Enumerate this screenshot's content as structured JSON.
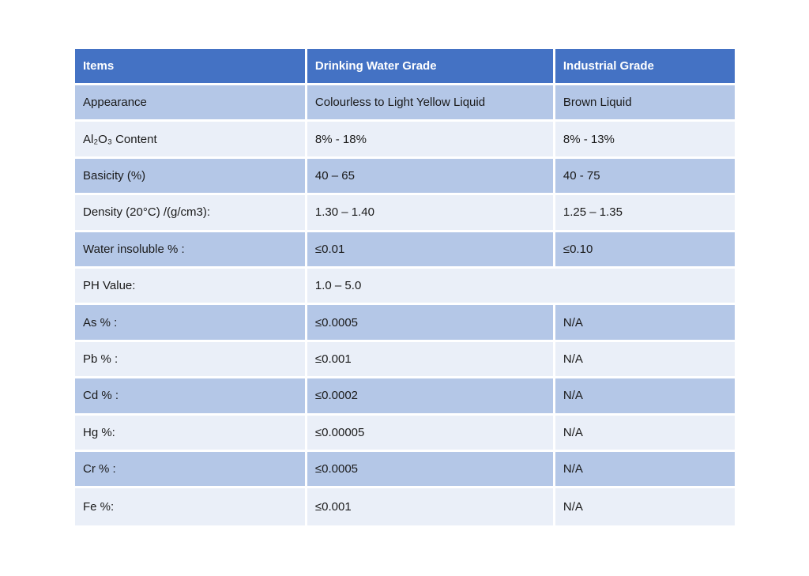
{
  "table": {
    "name": "product-specification-table",
    "columns": [
      {
        "label": "Items"
      },
      {
        "label": "Drinking Water Grade"
      },
      {
        "label": "Industrial Grade"
      }
    ],
    "rows": [
      {
        "item": "Appearance",
        "drinking": "Colourless to Light Yellow Liquid",
        "industrial": "Brown Liquid",
        "merged": false
      },
      {
        "item": "Al₂O₃ Content",
        "drinking": "8% - 18%",
        "industrial": "8% - 13%",
        "merged": false
      },
      {
        "item": "Basicity (%)",
        "drinking": "40 – 65",
        "industrial": "40 - 75",
        "merged": false
      },
      {
        "item": "Density (20°C) /(g/cm3):",
        "drinking": "1.30 – 1.40",
        "industrial": "1.25 – 1.35",
        "merged": false
      },
      {
        "item": "Water insoluble % :",
        "drinking": "≤0.01",
        "industrial": "≤0.10",
        "merged": false
      },
      {
        "item": "PH Value:",
        "drinking": "1.0 – 5.0",
        "industrial": "",
        "merged": true
      },
      {
        "item": "As % :",
        "drinking": "≤0.0005",
        "industrial": "N/A",
        "merged": false
      },
      {
        "item": "Pb % :",
        "drinking": "≤0.001",
        "industrial": "N/A",
        "merged": false
      },
      {
        "item": "Cd % :",
        "drinking": "≤0.0002",
        "industrial": "N/A",
        "merged": false
      },
      {
        "item": "Hg %:",
        "drinking": "≤0.00005",
        "industrial": "N/A",
        "merged": false
      },
      {
        "item": "Cr % :",
        "drinking": "≤0.0005",
        "industrial": "N/A",
        "merged": false
      },
      {
        "item": "Fe %:",
        "drinking": "≤0.001",
        "industrial": "N/A",
        "merged": false
      }
    ],
    "colors": {
      "header_bg": "#4472C4",
      "header_text": "#FFFFFF",
      "band_dark": "#B4C7E7",
      "band_light": "#EAEFF8",
      "body_text": "#1A1A1A",
      "divider": "#FFFFFF"
    }
  }
}
